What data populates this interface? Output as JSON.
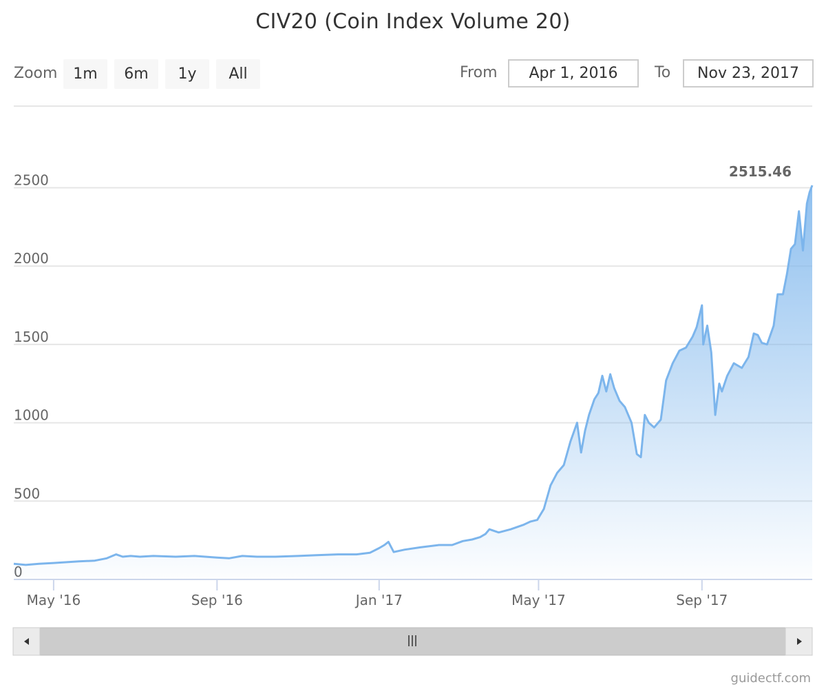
{
  "chart_data": {
    "type": "area",
    "title": "CIV20 (Coin Index Volume 20)",
    "xlabel": "",
    "ylabel": "",
    "xlim": [
      "2016-04-01",
      "2017-11-23"
    ],
    "ylim": [
      0,
      2515.46
    ],
    "y_ticks": [
      0,
      500,
      1000,
      1500,
      2000,
      2500
    ],
    "x_ticks": [
      {
        "label": "May '16",
        "date": "2016-05-01"
      },
      {
        "label": "Sep '16",
        "date": "2016-09-01"
      },
      {
        "label": "Jan '17",
        "date": "2017-01-01"
      },
      {
        "label": "May '17",
        "date": "2017-05-01"
      },
      {
        "label": "Sep '17",
        "date": "2017-09-01"
      }
    ],
    "grid": true,
    "legend": "none",
    "last_value_label": "2515.46",
    "series": [
      {
        "color": "#7cb5ec",
        "x": [
          "2016-04-01",
          "2016-04-10",
          "2016-04-20",
          "2016-05-01",
          "2016-05-10",
          "2016-05-20",
          "2016-06-01",
          "2016-06-10",
          "2016-06-17",
          "2016-06-22",
          "2016-06-28",
          "2016-07-05",
          "2016-07-15",
          "2016-08-01",
          "2016-08-15",
          "2016-09-01",
          "2016-09-10",
          "2016-09-20",
          "2016-10-01",
          "2016-10-15",
          "2016-11-01",
          "2016-11-15",
          "2016-12-01",
          "2016-12-15",
          "2016-12-25",
          "2017-01-01",
          "2017-01-05",
          "2017-01-08",
          "2017-01-12",
          "2017-01-20",
          "2017-02-01",
          "2017-02-15",
          "2017-02-25",
          "2017-03-05",
          "2017-03-12",
          "2017-03-18",
          "2017-03-22",
          "2017-03-25",
          "2017-04-01",
          "2017-04-10",
          "2017-04-20",
          "2017-04-25",
          "2017-04-30",
          "2017-05-05",
          "2017-05-10",
          "2017-05-15",
          "2017-05-20",
          "2017-05-25",
          "2017-05-30",
          "2017-06-02",
          "2017-06-05",
          "2017-06-08",
          "2017-06-12",
          "2017-06-15",
          "2017-06-18",
          "2017-06-21",
          "2017-06-24",
          "2017-06-27",
          "2017-07-01",
          "2017-07-05",
          "2017-07-10",
          "2017-07-14",
          "2017-07-17",
          "2017-07-20",
          "2017-07-23",
          "2017-07-27",
          "2017-08-01",
          "2017-08-05",
          "2017-08-10",
          "2017-08-15",
          "2017-08-20",
          "2017-08-25",
          "2017-08-28",
          "2017-09-01",
          "2017-09-02",
          "2017-09-05",
          "2017-09-08",
          "2017-09-11",
          "2017-09-14",
          "2017-09-16",
          "2017-09-20",
          "2017-09-25",
          "2017-10-01",
          "2017-10-06",
          "2017-10-10",
          "2017-10-13",
          "2017-10-16",
          "2017-10-20",
          "2017-10-25",
          "2017-10-28",
          "2017-11-01",
          "2017-11-04",
          "2017-11-07",
          "2017-11-10",
          "2017-11-13",
          "2017-11-16",
          "2017-11-19",
          "2017-11-21",
          "2017-11-23"
        ],
        "y": [
          100,
          93,
          100,
          105,
          110,
          115,
          120,
          135,
          160,
          145,
          150,
          145,
          150,
          145,
          150,
          140,
          135,
          150,
          145,
          145,
          150,
          155,
          160,
          160,
          170,
          200,
          220,
          240,
          175,
          190,
          205,
          220,
          220,
          245,
          255,
          270,
          290,
          320,
          300,
          320,
          350,
          370,
          380,
          450,
          600,
          680,
          730,
          880,
          1000,
          810,
          950,
          1050,
          1150,
          1190,
          1300,
          1200,
          1310,
          1220,
          1140,
          1100,
          1000,
          800,
          780,
          1050,
          1000,
          970,
          1020,
          1270,
          1380,
          1460,
          1480,
          1550,
          1610,
          1750,
          1500,
          1620,
          1450,
          1050,
          1250,
          1200,
          1300,
          1380,
          1350,
          1420,
          1570,
          1560,
          1510,
          1500,
          1620,
          1820,
          1820,
          1950,
          2110,
          2140,
          2350,
          2100,
          2400,
          2470,
          2515.46
        ]
      }
    ]
  },
  "zoom": {
    "label": "Zoom",
    "buttons": [
      "1m",
      "6m",
      "1y",
      "All"
    ],
    "active_index": 3
  },
  "range": {
    "from_label": "From",
    "from_value": "Apr 1, 2016",
    "to_label": "To",
    "to_value": "Nov 23, 2017"
  },
  "watermark": "guidectf.com"
}
